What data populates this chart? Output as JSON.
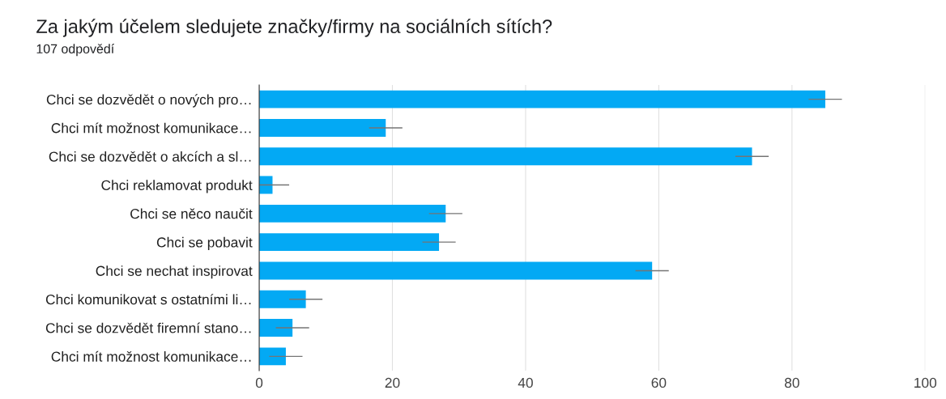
{
  "chart_data": {
    "type": "bar",
    "orientation": "horizontal",
    "title": "Za jakým účelem sledujete značky/firmy na sociálních sítích?",
    "subtitle": "107 odpovědí",
    "categories": [
      "Chci se dozvědět o nových pro…",
      "Chci mít možnost komunikace…",
      "Chci se dozvědět o akcích a sl…",
      "Chci reklamovat produkt",
      "Chci se něco naučit",
      "Chci se pobavit",
      "Chci se nechat inspirovat",
      "Chci komunikovat s ostatními li…",
      "Chci se dozvědět firemní stano…",
      "Chci mít možnost komunikace…"
    ],
    "values": [
      85,
      19,
      74,
      2,
      28,
      27,
      59,
      7,
      5,
      4
    ],
    "errors": [
      2.5,
      2.5,
      2.5,
      2.5,
      2.5,
      2.5,
      2.5,
      2.5,
      2.5,
      2.5
    ],
    "color": "#03a9f4",
    "xlim": [
      0,
      100
    ],
    "xticks": [
      0,
      20,
      40,
      60,
      80,
      100
    ],
    "grid": "x",
    "legend": false
  }
}
